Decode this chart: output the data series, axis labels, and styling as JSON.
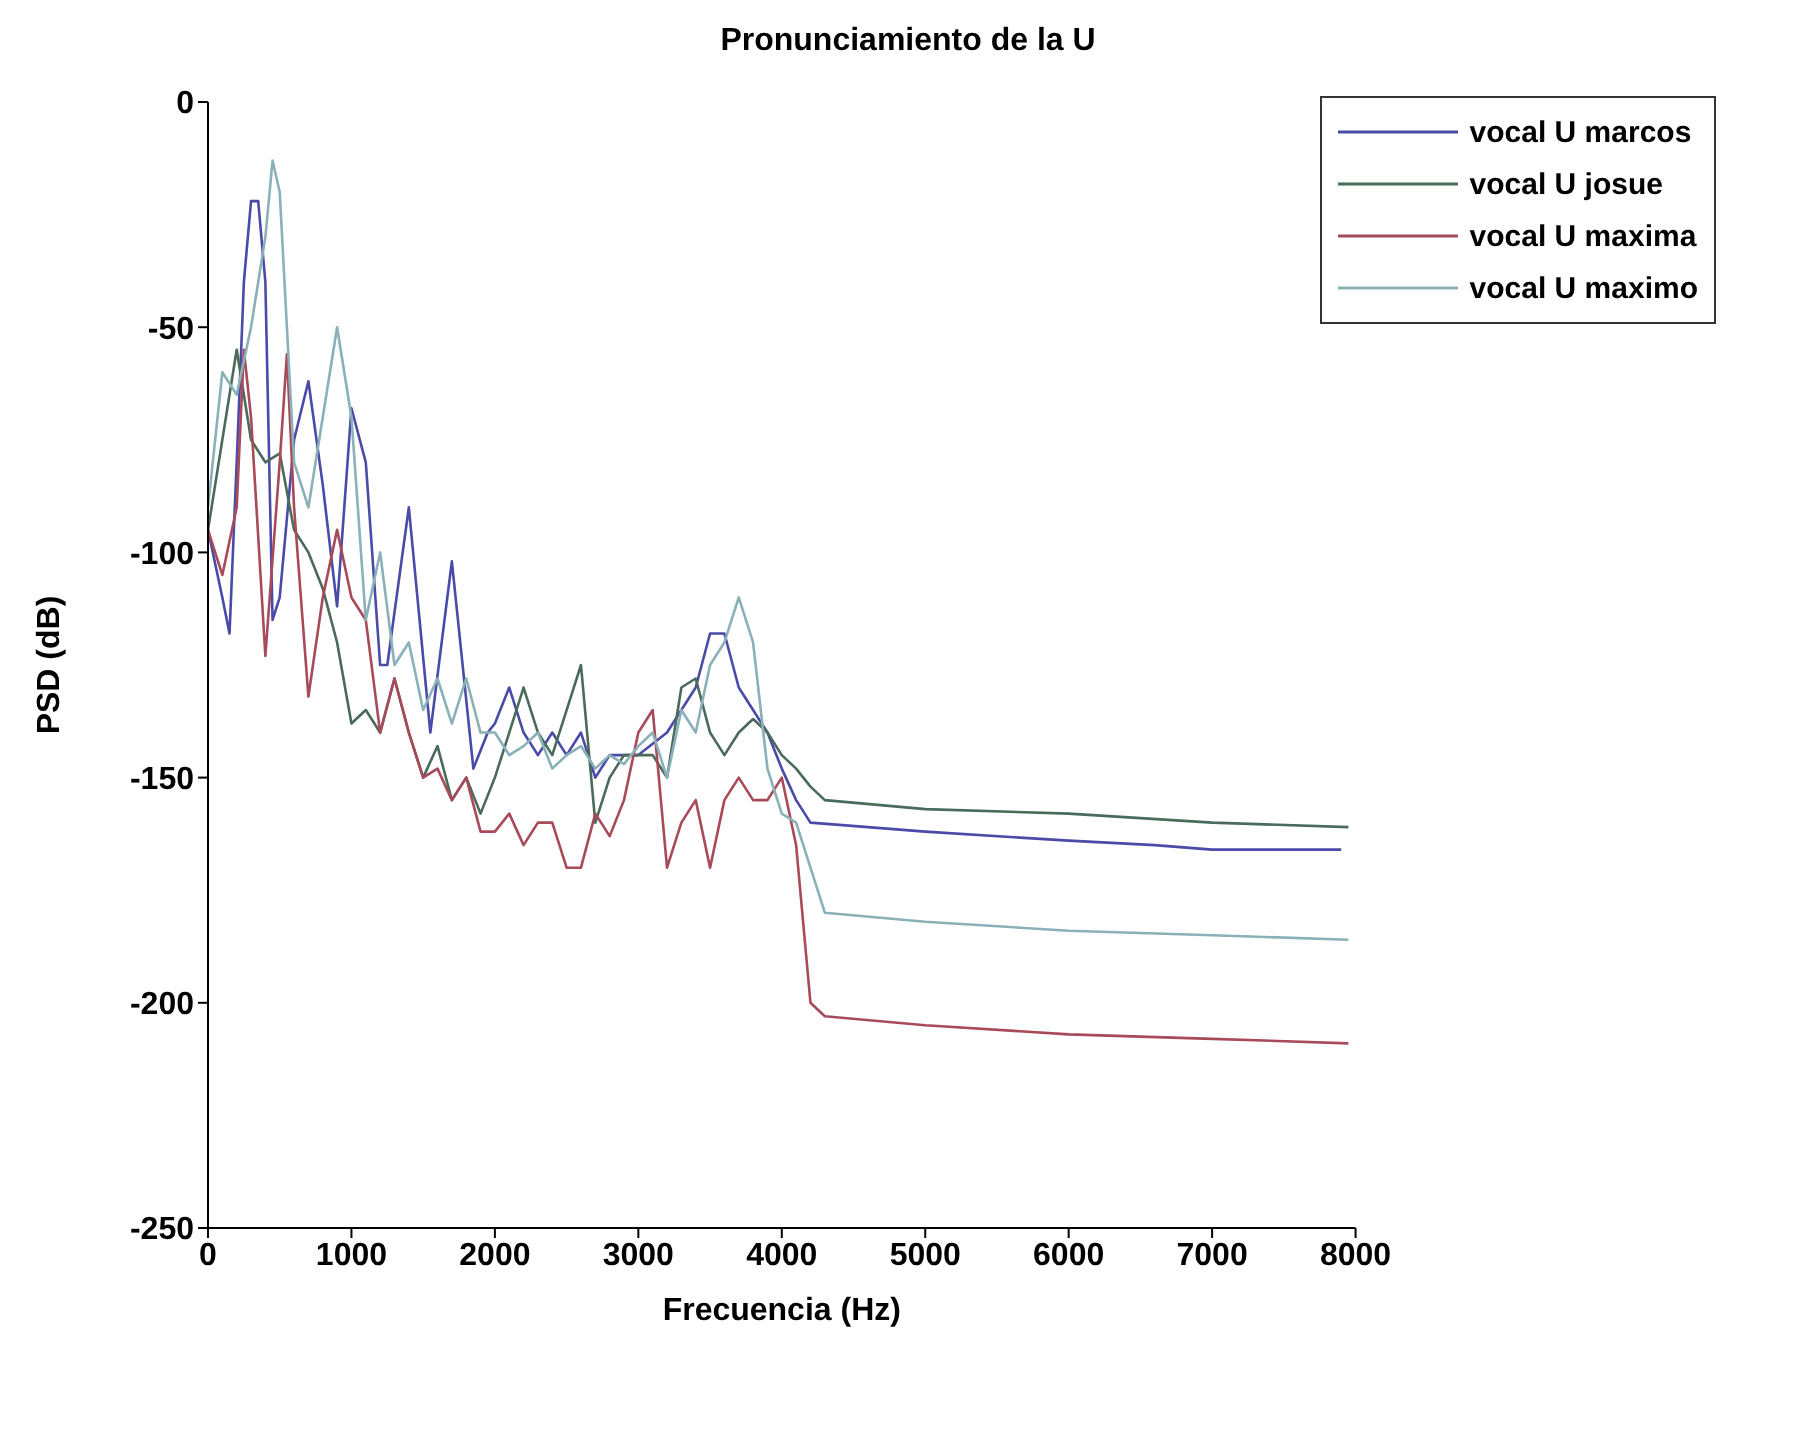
{
  "chart_data": {
    "type": "line",
    "title": "Pronunciamiento de la U",
    "xlabel": "Frecuencia (Hz)",
    "ylabel": "PSD (dB)",
    "xlim": [
      0,
      8000
    ],
    "xticks": [
      0,
      1000,
      2000,
      3000,
      4000,
      5000,
      6000,
      7000,
      8000
    ],
    "ylim": [
      -250,
      0
    ],
    "yticks": [
      -250,
      -200,
      -150,
      -100,
      -50,
      0
    ],
    "grid": false,
    "legend": "top right",
    "marker": "none",
    "line_style": "solid",
    "series": [
      {
        "name": "vocal U marcos",
        "color": "#4a4aa8",
        "x": [
          0,
          100,
          150,
          200,
          250,
          300,
          350,
          400,
          450,
          500,
          600,
          700,
          800,
          900,
          1000,
          1100,
          1200,
          1250,
          1400,
          1550,
          1700,
          1850,
          1950,
          2000,
          2100,
          2200,
          2300,
          2400,
          2500,
          2600,
          2700,
          2800,
          3000,
          3200,
          3300,
          3400,
          3500,
          3600,
          3700,
          3800,
          3900,
          4000,
          4100,
          4200,
          5000,
          6000,
          6600,
          7000,
          7900
        ],
        "values": [
          -95,
          -110,
          -118,
          -80,
          -40,
          -22,
          -22,
          -40,
          -115,
          -110,
          -75,
          -62,
          -85,
          -112,
          -68,
          -80,
          -125,
          -125,
          -90,
          -140,
          -102,
          -148,
          -140,
          -138,
          -130,
          -140,
          -145,
          -140,
          -145,
          -140,
          -150,
          -145,
          -145,
          -140,
          -135,
          -130,
          -118,
          -118,
          -130,
          -135,
          -140,
          -148,
          -155,
          -160,
          -162,
          -164,
          -165,
          -166,
          -166
        ]
      },
      {
        "name": "vocal U josue",
        "color": "#4a6a5a",
        "x": [
          0,
          100,
          200,
          300,
          400,
          500,
          600,
          700,
          800,
          900,
          1000,
          1100,
          1200,
          1300,
          1400,
          1500,
          1600,
          1700,
          1800,
          1900,
          2000,
          2100,
          2200,
          2300,
          2400,
          2500,
          2600,
          2700,
          2800,
          2900,
          3000,
          3100,
          3200,
          3300,
          3400,
          3500,
          3600,
          3700,
          3800,
          3900,
          4000,
          4100,
          4200,
          4300,
          5000,
          6000,
          7000,
          7950
        ],
        "values": [
          -95,
          -75,
          -55,
          -75,
          -80,
          -78,
          -95,
          -100,
          -108,
          -120,
          -138,
          -135,
          -140,
          -128,
          -140,
          -150,
          -143,
          -155,
          -150,
          -158,
          -150,
          -140,
          -130,
          -140,
          -145,
          -135,
          -125,
          -160,
          -150,
          -145,
          -145,
          -145,
          -150,
          -130,
          -128,
          -140,
          -145,
          -140,
          -137,
          -140,
          -145,
          -148,
          -152,
          -155,
          -157,
          -158,
          -160,
          -161
        ]
      },
      {
        "name": "vocal U maxima",
        "color": "#a84a5a",
        "x": [
          0,
          100,
          200,
          250,
          300,
          400,
          500,
          550,
          600,
          700,
          800,
          900,
          1000,
          1100,
          1200,
          1300,
          1400,
          1500,
          1600,
          1700,
          1800,
          1900,
          2000,
          2100,
          2200,
          2300,
          2400,
          2500,
          2600,
          2700,
          2800,
          2900,
          3000,
          3100,
          3200,
          3300,
          3400,
          3500,
          3600,
          3700,
          3800,
          3900,
          4000,
          4100,
          4200,
          4300,
          5000,
          6000,
          7000,
          7950
        ],
        "values": [
          -95,
          -105,
          -90,
          -55,
          -70,
          -123,
          -80,
          -56,
          -90,
          -132,
          -110,
          -95,
          -110,
          -115,
          -140,
          -128,
          -140,
          -150,
          -148,
          -155,
          -150,
          -162,
          -162,
          -158,
          -165,
          -160,
          -160,
          -170,
          -170,
          -158,
          -163,
          -155,
          -140,
          -135,
          -170,
          -160,
          -155,
          -170,
          -155,
          -150,
          -155,
          -155,
          -150,
          -165,
          -200,
          -203,
          -205,
          -207,
          -208,
          -209
        ]
      },
      {
        "name": "vocal U maximo",
        "color": "#8ab0b8",
        "x": [
          0,
          100,
          200,
          300,
          400,
          450,
          500,
          600,
          700,
          800,
          900,
          1000,
          1100,
          1200,
          1300,
          1400,
          1500,
          1600,
          1700,
          1800,
          1900,
          2000,
          2100,
          2200,
          2300,
          2400,
          2500,
          2600,
          2700,
          2800,
          2900,
          3000,
          3100,
          3200,
          3300,
          3400,
          3500,
          3600,
          3700,
          3800,
          3900,
          4000,
          4100,
          4200,
          4300,
          5000,
          6000,
          7000,
          7950
        ],
        "values": [
          -90,
          -60,
          -65,
          -50,
          -30,
          -13,
          -20,
          -80,
          -90,
          -70,
          -50,
          -70,
          -115,
          -100,
          -125,
          -120,
          -135,
          -128,
          -138,
          -128,
          -140,
          -140,
          -145,
          -143,
          -140,
          -148,
          -145,
          -143,
          -148,
          -145,
          -147,
          -143,
          -140,
          -150,
          -135,
          -140,
          -125,
          -120,
          -110,
          -120,
          -148,
          -158,
          -160,
          -170,
          -180,
          -182,
          -184,
          -185,
          -186
        ]
      }
    ]
  }
}
